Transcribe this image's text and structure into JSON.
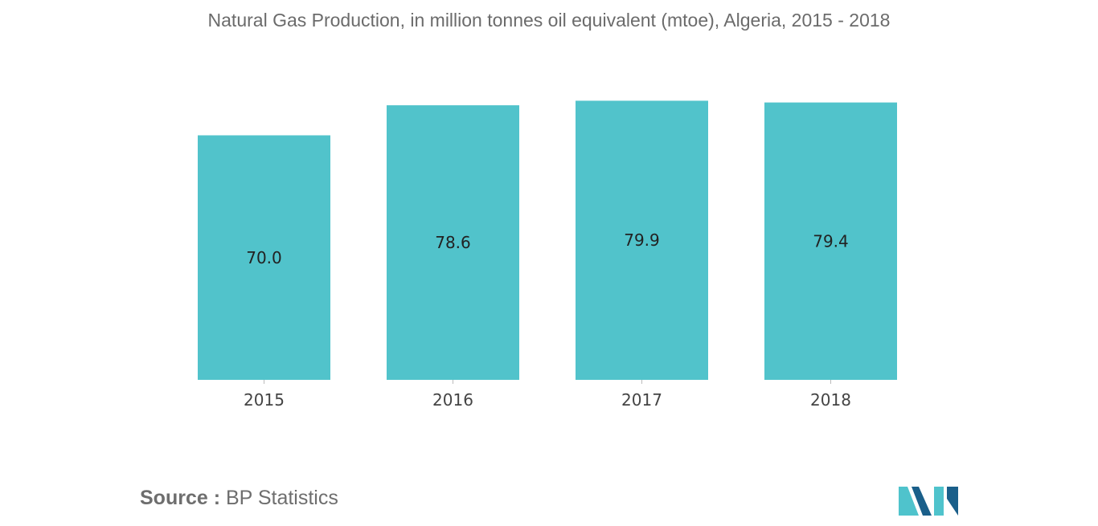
{
  "title": "Natural Gas Production, in million tonnes oil equivalent (mtoe), Algeria, 2015 - 2018",
  "source": {
    "label": "Source :",
    "text": "BP Statistics"
  },
  "colors": {
    "bar": "#51c3cb",
    "logo_dark": "#1a5f8a",
    "logo_light": "#4fc3cc"
  },
  "logo": {
    "icon": "mordor-intelligence-logo"
  },
  "chart_data": {
    "type": "bar",
    "title": "Natural Gas Production, in million tonnes oil equivalent (mtoe), Algeria, 2015 - 2018",
    "categories": [
      "2015",
      "2016",
      "2017",
      "2018"
    ],
    "values": [
      70.0,
      78.6,
      79.9,
      79.4
    ],
    "value_labels": [
      "70.0",
      "78.6",
      "79.9",
      "79.4"
    ],
    "xlabel": "",
    "ylabel": "",
    "ylim": [
      0,
      80
    ],
    "grid": false,
    "legend": "none"
  }
}
